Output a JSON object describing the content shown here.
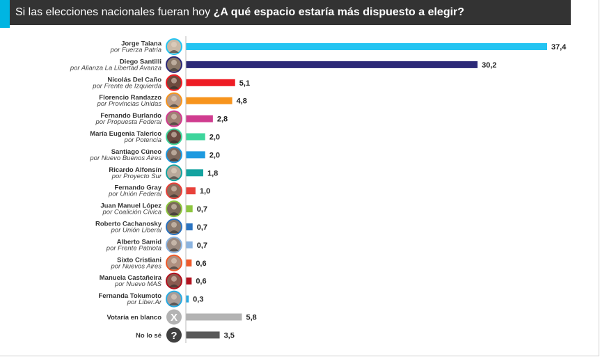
{
  "header": {
    "title_prefix": "Si las elecciones nacionales fueran hoy",
    "title_question": "¿A qué espacio estaría más dispuesto a elegir?"
  },
  "chart_data": {
    "type": "bar",
    "orientation": "horizontal",
    "title": "Si las elecciones nacionales fueran hoy ¿A qué espacio estaría más dispuesto a elegir?",
    "xlim": [
      0,
      37.4
    ],
    "rows": [
      {
        "name": "Jorge Taiana",
        "party": "por Fuerza Patria",
        "value": 37.4,
        "label": "37,4",
        "color": "#23c4f2",
        "avatar": "#c9b9a7"
      },
      {
        "name": "Diego Santilli",
        "party": "por Alianza La Libertad Avanza",
        "value": 30.2,
        "label": "30,2",
        "color": "#2c2a78",
        "avatar": "#8a7868"
      },
      {
        "name": "Nicolás Del Caño",
        "party": "por Frente de Izquierda",
        "value": 5.1,
        "label": "5,1",
        "color": "#ee1c24",
        "avatar": "#6e4a3e"
      },
      {
        "name": "Florencio Randazzo",
        "party": "por Provincias Unidas",
        "value": 4.8,
        "label": "4,8",
        "color": "#f7941d",
        "avatar": "#b89c8a"
      },
      {
        "name": "Fernando Burlando",
        "party": "por Propuesta Federal",
        "value": 2.8,
        "label": "2,8",
        "color": "#d03c8f",
        "avatar": "#a07f74"
      },
      {
        "name": "María Eugenia Talerico",
        "party": "por Potencia",
        "value": 2.0,
        "label": "2,0",
        "color": "#3ed59c",
        "avatar": "#6a4b41"
      },
      {
        "name": "Santiago Cúneo",
        "party": "por Nuevo Buenos Aires",
        "value": 2.0,
        "label": "2,0",
        "color": "#1d9ae0",
        "avatar": "#7e6a5e"
      },
      {
        "name": "Ricardo Alfonsín",
        "party": "por Proyecto Sur",
        "value": 1.8,
        "label": "1,8",
        "color": "#14a3a0",
        "avatar": "#b8a89a"
      },
      {
        "name": "Fernando Gray",
        "party": "por Unión Federal",
        "value": 1.0,
        "label": "1,0",
        "color": "#e8413a",
        "avatar": "#8c6c5c"
      },
      {
        "name": "Juan Manuel López",
        "party": "por Coalición Cívica",
        "value": 0.7,
        "label": "0,7",
        "color": "#8dc63f",
        "avatar": "#7a6a5a"
      },
      {
        "name": "Roberto Cachanosky",
        "party": "por Unión Liberal",
        "value": 0.7,
        "label": "0,7",
        "color": "#2a73c0",
        "avatar": "#8a7a6e"
      },
      {
        "name": "Alberto Samid",
        "party": "por Frente Patriota",
        "value": 0.7,
        "label": "0,7",
        "color": "#8cb4e0",
        "avatar": "#9a8a80"
      },
      {
        "name": "Sixto Cristiani",
        "party": "por Nuevos Aires",
        "value": 0.6,
        "label": "0,6",
        "color": "#ef5a2a",
        "avatar": "#b09080"
      },
      {
        "name": "Manuela Castañeira",
        "party": "por Nuevo MAS",
        "value": 0.6,
        "label": "0,6",
        "color": "#b3121f",
        "avatar": "#8a5a50"
      },
      {
        "name": "Fernanda Tokumoto",
        "party": "por Liber.Ar",
        "value": 0.3,
        "label": "0,3",
        "color": "#29abe2",
        "avatar": "#a89c98"
      },
      {
        "name": "Votaría en blanco",
        "party": "",
        "value": 5.8,
        "label": "5,8",
        "color": "#b3b3b3",
        "avatar": "#b3b3b3",
        "icon": "x-icon",
        "symbol": "X"
      },
      {
        "name": "No lo sé",
        "party": "",
        "value": 3.5,
        "label": "3,5",
        "color": "#595959",
        "avatar": "#404040",
        "icon": "question-icon",
        "symbol": "?"
      }
    ]
  }
}
